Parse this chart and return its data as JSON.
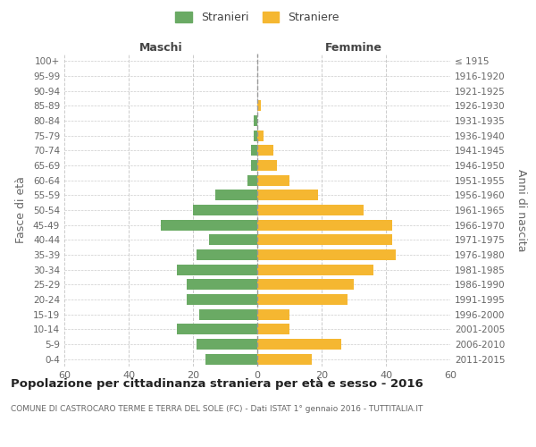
{
  "age_groups": [
    "0-4",
    "5-9",
    "10-14",
    "15-19",
    "20-24",
    "25-29",
    "30-34",
    "35-39",
    "40-44",
    "45-49",
    "50-54",
    "55-59",
    "60-64",
    "65-69",
    "70-74",
    "75-79",
    "80-84",
    "85-89",
    "90-94",
    "95-99",
    "100+"
  ],
  "birth_years": [
    "2011-2015",
    "2006-2010",
    "2001-2005",
    "1996-2000",
    "1991-1995",
    "1986-1990",
    "1981-1985",
    "1976-1980",
    "1971-1975",
    "1966-1970",
    "1961-1965",
    "1956-1960",
    "1951-1955",
    "1946-1950",
    "1941-1945",
    "1936-1940",
    "1931-1935",
    "1926-1930",
    "1921-1925",
    "1916-1920",
    "≤ 1915"
  ],
  "males": [
    16,
    19,
    25,
    18,
    22,
    22,
    25,
    19,
    15,
    30,
    20,
    13,
    3,
    2,
    2,
    1,
    1,
    0,
    0,
    0,
    0
  ],
  "females": [
    17,
    26,
    10,
    10,
    28,
    30,
    36,
    43,
    42,
    42,
    33,
    19,
    10,
    6,
    5,
    2,
    0,
    1,
    0,
    0,
    0
  ],
  "male_color": "#6aaa64",
  "female_color": "#f5b731",
  "background_color": "#ffffff",
  "grid_color": "#cccccc",
  "xlim": 60,
  "title": "Popolazione per cittadinanza straniera per età e sesso - 2016",
  "subtitle": "COMUNE DI CASTROCARO TERME E TERRA DEL SOLE (FC) - Dati ISTAT 1° gennaio 2016 - TUTTITALIA.IT",
  "ylabel_left": "Fasce di età",
  "ylabel_right": "Anni di nascita",
  "legend_male": "Stranieri",
  "legend_female": "Straniere",
  "maschi_label": "Maschi",
  "femmine_label": "Femmine",
  "xticks": [
    -60,
    -40,
    -20,
    0,
    20,
    40,
    60
  ],
  "xtick_labels": [
    "60",
    "40",
    "20",
    "0",
    "20",
    "40",
    "60"
  ]
}
